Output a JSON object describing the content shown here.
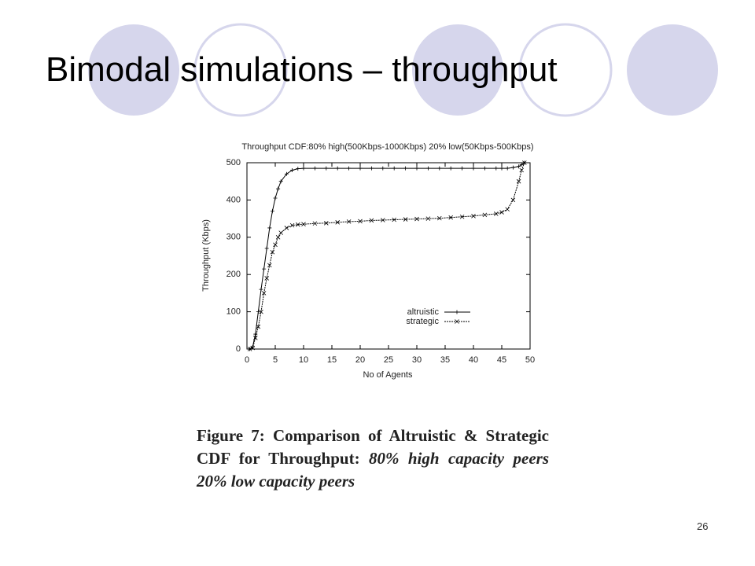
{
  "slide_title": "Bimodal simulations – throughput",
  "chart_data": {
    "type": "line",
    "title": "Throughput CDF:80% high(500Kbps-1000Kbps) 20% low(50Kbps-500Kbps)",
    "x_label": "No of Agents",
    "y_label": "Throughput (Kbps)",
    "x": [
      0.5,
      1,
      1.5,
      2,
      2.5,
      3,
      3.5,
      4,
      4.5,
      5,
      5.5,
      6,
      7,
      8,
      9,
      10,
      12,
      14,
      16,
      18,
      20,
      22,
      24,
      26,
      28,
      30,
      32,
      34,
      36,
      38,
      40,
      42,
      44,
      45,
      46,
      47,
      48,
      48.5,
      49
    ],
    "series": [
      {
        "name": "altruistic",
        "color": "#000000",
        "marker": "+",
        "values": [
          0,
          5,
          40,
          100,
          160,
          215,
          270,
          325,
          370,
          405,
          430,
          450,
          470,
          480,
          484,
          485,
          485,
          485,
          485,
          485,
          485,
          485,
          485,
          485,
          485,
          485,
          485,
          485,
          485,
          485,
          485,
          485,
          485,
          485,
          485,
          487,
          490,
          495,
          500
        ]
      },
      {
        "name": "strategic",
        "color": "#000000",
        "marker": "x",
        "values": [
          0,
          3,
          30,
          60,
          100,
          150,
          190,
          225,
          260,
          280,
          300,
          312,
          325,
          332,
          334,
          335,
          337,
          338,
          340,
          342,
          343,
          345,
          346,
          347,
          348,
          349,
          350,
          351,
          353,
          355,
          357,
          360,
          363,
          367,
          375,
          400,
          450,
          480,
          500
        ]
      }
    ],
    "xlim": [
      0,
      50
    ],
    "ylim": [
      0,
      500
    ],
    "xticks": [
      0,
      5,
      10,
      15,
      20,
      25,
      30,
      35,
      40,
      45,
      50
    ],
    "yticks": [
      0,
      100,
      200,
      300,
      400,
      500
    ],
    "grid": false,
    "legend": "right"
  },
  "caption": {
    "label": "Figure 7:",
    "bold": "Comparison of Altruistic & Strategic CDF for Throughput:",
    "italic": "80% high capacity peers 20% low capacity peers"
  },
  "page_number": "26"
}
